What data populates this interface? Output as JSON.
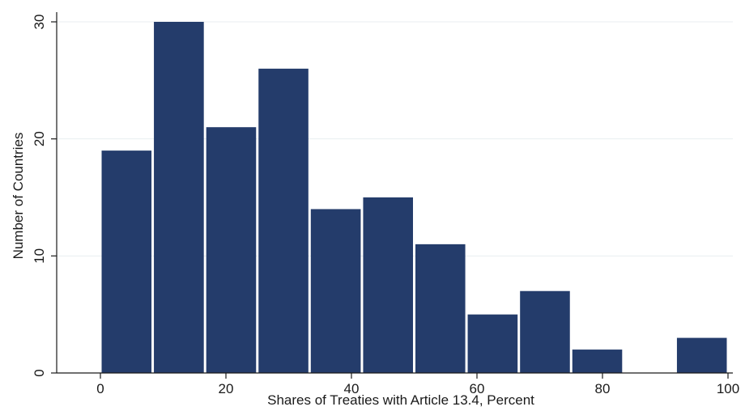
{
  "chart_data": {
    "type": "bar",
    "title": "",
    "xlabel": "Shares of Treaties with Article 13.4, Percent",
    "ylabel": "Number of Countries",
    "xlim": [
      0,
      100
    ],
    "ylim": [
      0,
      30
    ],
    "x_ticks": [
      0,
      20,
      40,
      60,
      80,
      100
    ],
    "y_ticks": [
      0,
      10,
      20,
      30
    ],
    "grid": true,
    "bar_color": "#243c6b",
    "bins": [
      {
        "start": 0,
        "end": 8.33,
        "count": 19
      },
      {
        "start": 8.33,
        "end": 16.67,
        "count": 30
      },
      {
        "start": 16.67,
        "end": 25,
        "count": 21
      },
      {
        "start": 25,
        "end": 33.33,
        "count": 26
      },
      {
        "start": 33.33,
        "end": 41.67,
        "count": 14
      },
      {
        "start": 41.67,
        "end": 50,
        "count": 15
      },
      {
        "start": 50,
        "end": 58.33,
        "count": 11
      },
      {
        "start": 58.33,
        "end": 66.67,
        "count": 5
      },
      {
        "start": 66.67,
        "end": 75,
        "count": 7
      },
      {
        "start": 75,
        "end": 83.33,
        "count": 2
      },
      {
        "start": 83.33,
        "end": 91.67,
        "count": 0
      },
      {
        "start": 91.67,
        "end": 100,
        "count": 3
      }
    ]
  }
}
